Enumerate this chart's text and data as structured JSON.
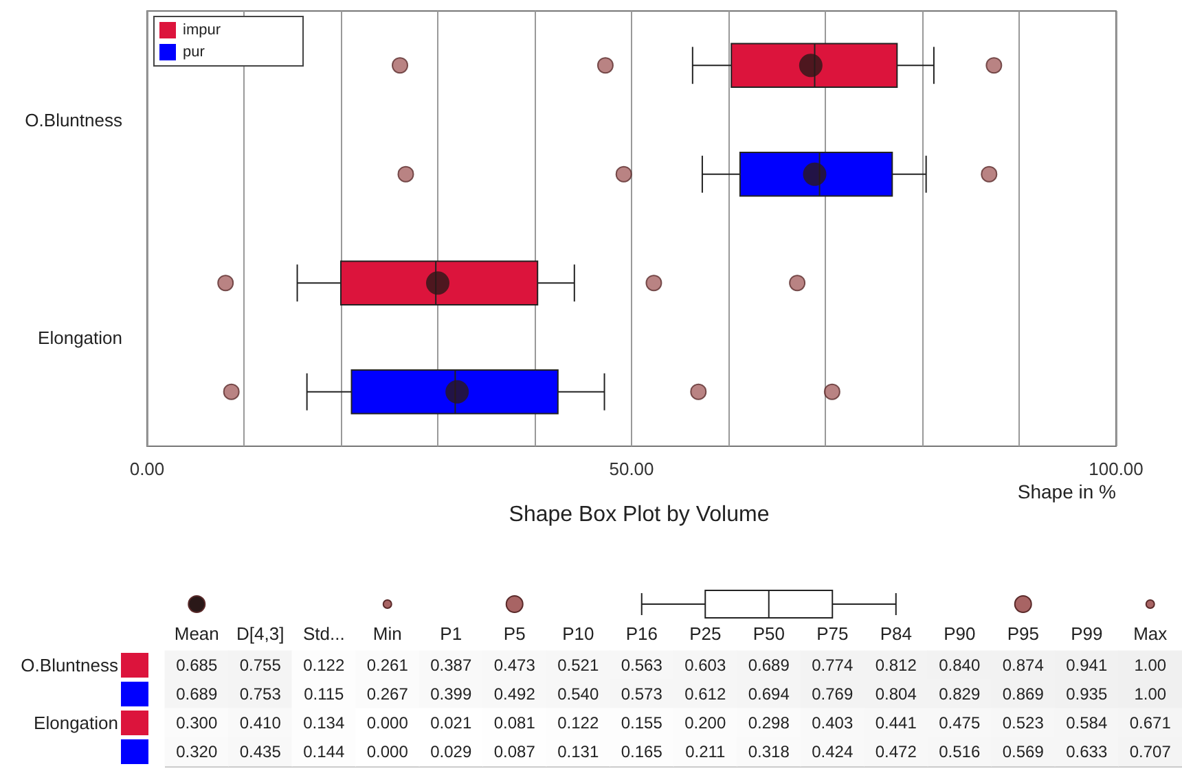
{
  "chart_data": [
    {
      "type": "box",
      "orientation": "horizontal",
      "title": "Shape Box Plot by Volume",
      "xlabel": "Shape in %",
      "categories": [
        "O.Bluntness",
        "Elongation"
      ],
      "series": [
        {
          "name": "impur",
          "color": "#dc143c",
          "boxes": [
            {
              "low": 56.3,
              "q1": 60.3,
              "median": 68.9,
              "q3": 77.4,
              "high": 81.2,
              "mean": 68.5,
              "outliers": [
                26.1,
                47.3,
                87.4
              ]
            },
            {
              "low": 15.5,
              "q1": 20.0,
              "median": 29.8,
              "q3": 40.3,
              "high": 44.1,
              "mean": 30.0,
              "outliers": [
                8.1,
                52.3,
                67.1
              ]
            }
          ]
        },
        {
          "name": "pur",
          "color": "#0000ff",
          "boxes": [
            {
              "low": 57.3,
              "q1": 61.2,
              "median": 69.4,
              "q3": 76.9,
              "high": 80.4,
              "mean": 68.9,
              "outliers": [
                26.7,
                49.2,
                86.9
              ]
            },
            {
              "low": 16.5,
              "q1": 21.1,
              "median": 31.8,
              "q3": 42.4,
              "high": 47.2,
              "mean": 32.0,
              "outliers": [
                8.7,
                56.9,
                70.7
              ]
            }
          ]
        }
      ],
      "xlim": [
        0,
        100
      ],
      "xticks": [
        {
          "value": 0,
          "label": "0.00"
        },
        {
          "value": 10,
          "label": null
        },
        {
          "value": 20,
          "label": null
        },
        {
          "value": 30,
          "label": null
        },
        {
          "value": 40,
          "label": null
        },
        {
          "value": 50,
          "label": "50.00"
        },
        {
          "value": 60,
          "label": null
        },
        {
          "value": 70,
          "label": null
        },
        {
          "value": 80,
          "label": null
        },
        {
          "value": 90,
          "label": null
        },
        {
          "value": 100,
          "label": "100.00"
        }
      ],
      "grid": "x",
      "legend": "top left"
    },
    {
      "type": "heatmap",
      "data_labels": true,
      "categories": [
        "Mean",
        "D[4,3]",
        "Std...",
        "Min",
        "P1",
        "P5",
        "P10",
        "P16",
        "P25",
        "P50",
        "P75",
        "P84",
        "P90",
        "P95",
        "P99",
        "Max"
      ],
      "y_categories": [
        "O.Bluntness",
        null,
        "Elongation",
        null
      ],
      "colors": [
        "#dc143c",
        "#0000ff",
        "#dc143c",
        "#0000ff"
      ],
      "cells": [
        [
          0.685,
          0.755,
          0.122,
          0.261,
          0.387,
          0.473,
          0.521,
          0.563,
          0.603,
          0.689,
          0.774,
          0.812,
          0.84,
          0.874,
          0.941,
          1.0
        ],
        [
          0.689,
          0.753,
          0.115,
          0.267,
          0.399,
          0.492,
          0.54,
          0.573,
          0.612,
          0.694,
          0.769,
          0.804,
          0.829,
          0.869,
          0.935,
          1.0
        ],
        [
          0.3,
          0.41,
          0.134,
          0.0,
          0.021,
          0.081,
          0.122,
          0.155,
          0.2,
          0.298,
          0.403,
          0.441,
          0.475,
          0.523,
          0.584,
          0.671
        ],
        [
          0.32,
          0.435,
          0.144,
          0.0,
          0.029,
          0.087,
          0.131,
          0.165,
          0.211,
          0.318,
          0.424,
          0.472,
          0.516,
          0.569,
          0.633,
          0.707
        ]
      ],
      "cell_labels": [
        [
          "0.685",
          "0.755",
          "0.122",
          "0.261",
          "0.387",
          "0.473",
          "0.521",
          "0.563",
          "0.603",
          "0.689",
          "0.774",
          "0.812",
          "0.840",
          "0.874",
          "0.941",
          "1.00"
        ],
        [
          "0.689",
          "0.753",
          "0.115",
          "0.267",
          "0.399",
          "0.492",
          "0.540",
          "0.573",
          "0.612",
          "0.694",
          "0.769",
          "0.804",
          "0.829",
          "0.869",
          "0.935",
          "1.00"
        ],
        [
          "0.300",
          "0.410",
          "0.134",
          "0.000",
          "0.021",
          "0.081",
          "0.122",
          "0.155",
          "0.200",
          "0.298",
          "0.403",
          "0.441",
          "0.475",
          "0.523",
          "0.584",
          "0.671"
        ],
        [
          "0.320",
          "0.435",
          "0.144",
          "0.000",
          "0.029",
          "0.087",
          "0.131",
          "0.165",
          "0.211",
          "0.318",
          "0.424",
          "0.472",
          "0.516",
          "0.569",
          "0.633",
          "0.707"
        ]
      ]
    }
  ]
}
